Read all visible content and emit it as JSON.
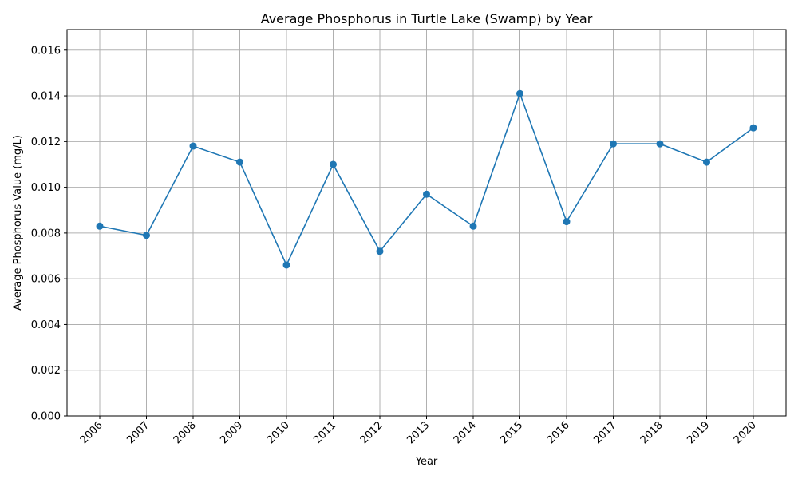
{
  "chart_data": {
    "type": "line",
    "title": "Average Phosphorus in Turtle Lake (Swamp) by Year",
    "xlabel": "Year",
    "ylabel": "Average Phosphorus Value (mg/L)",
    "categories": [
      "2006",
      "2007",
      "2008",
      "2009",
      "2010",
      "2011",
      "2012",
      "2013",
      "2014",
      "2015",
      "2016",
      "2017",
      "2018",
      "2019",
      "2020"
    ],
    "series": [
      {
        "values": [
          0.0083,
          0.0079,
          0.0118,
          0.0111,
          0.0066,
          0.011,
          0.0072,
          0.0097,
          0.0083,
          0.0141,
          0.0085,
          0.0119,
          0.0119,
          0.0111,
          0.0126
        ],
        "color": "#1f77b4",
        "marker": "circle"
      }
    ],
    "ylim": [
      0,
      0.0169
    ],
    "yticks": [
      "0.000",
      "0.002",
      "0.004",
      "0.006",
      "0.008",
      "0.010",
      "0.012",
      "0.014",
      "0.016"
    ],
    "grid": true,
    "x_tick_rotation": "45 degrees"
  }
}
